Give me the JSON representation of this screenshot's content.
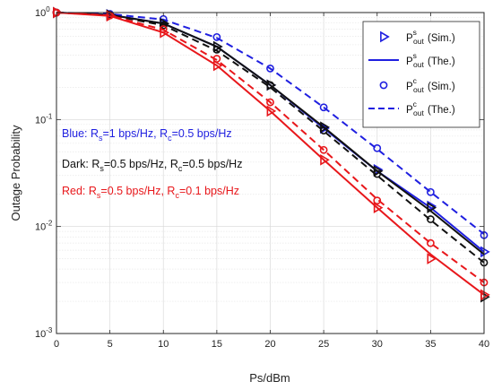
{
  "chart_data": {
    "type": "line",
    "xlabel": "Ps/dBm",
    "ylabel": "Outage Probability",
    "xlim": [
      0,
      40
    ],
    "ylim": [
      0.001,
      1
    ],
    "yscale": "log",
    "grid": true,
    "x_ticks": [
      0,
      5,
      10,
      15,
      20,
      25,
      30,
      35,
      40
    ],
    "y_ticks": [
      {
        "value": 0.001,
        "base": "10",
        "exp": "-3"
      },
      {
        "value": 0.01,
        "base": "10",
        "exp": "-2"
      },
      {
        "value": 0.1,
        "base": "10",
        "exp": "-1"
      },
      {
        "value": 1,
        "base": "10",
        "exp": "0"
      }
    ],
    "legend_position": "top-right",
    "legend": [
      {
        "kind": "triangle",
        "style": "marker",
        "main": "P",
        "sup": "s",
        "sub": "out",
        "tail": "(Sim.)"
      },
      {
        "kind": "line-solid",
        "style": "solid",
        "main": "P",
        "sup": "s",
        "sub": "out",
        "tail": "(The.)"
      },
      {
        "kind": "circle",
        "style": "marker",
        "main": "P",
        "sup": "c",
        "sub": "out",
        "tail": "(Sim.)"
      },
      {
        "kind": "line-dashed",
        "style": "dashed",
        "main": "P",
        "sup": "c",
        "sub": "out",
        "tail": "(The.)"
      }
    ],
    "annotations": [
      {
        "color": "#1f1fe0",
        "parts": [
          [
            "Blue: R",
            ""
          ],
          [
            "s",
            "sub"
          ],
          [
            "=1 bps/Hz, R",
            ""
          ],
          [
            "c",
            "sub"
          ],
          [
            "=0.5 bps/Hz",
            ""
          ]
        ]
      },
      {
        "color": "#111111",
        "parts": [
          [
            "Dark: R",
            ""
          ],
          [
            "s",
            "sub"
          ],
          [
            "=0.5 bps/Hz, R",
            ""
          ],
          [
            "c",
            "sub"
          ],
          [
            "=0.5 bps/Hz",
            ""
          ]
        ]
      },
      {
        "color": "#e8171b",
        "parts": [
          [
            "Red: R",
            ""
          ],
          [
            "s",
            "sub"
          ],
          [
            "=0.5 bps/Hz, R",
            ""
          ],
          [
            "c",
            "sub"
          ],
          [
            "=0.1 bps/Hz",
            ""
          ]
        ]
      }
    ],
    "x": [
      0,
      5,
      10,
      15,
      20,
      25,
      30,
      35,
      40
    ],
    "series": [
      {
        "group": "blue",
        "color": "#1f1fe0",
        "kind": "line-solid",
        "values": [
          1,
          0.955,
          0.79,
          0.48,
          0.21,
          0.083,
          0.033,
          0.015,
          0.0058
        ]
      },
      {
        "group": "blue",
        "color": "#1f1fe0",
        "kind": "triangle",
        "values": [
          1,
          0.955,
          0.79,
          0.48,
          0.21,
          0.083,
          0.034,
          0.0155,
          0.0058
        ]
      },
      {
        "group": "blue",
        "color": "#1f1fe0",
        "kind": "line-dashed",
        "values": [
          1,
          0.97,
          0.86,
          0.58,
          0.3,
          0.13,
          0.053,
          0.021,
          0.0085
        ]
      },
      {
        "group": "blue",
        "color": "#1f1fe0",
        "kind": "circle",
        "values": [
          1,
          0.97,
          0.87,
          0.59,
          0.3,
          0.13,
          0.054,
          0.021,
          0.0083
        ]
      },
      {
        "group": "dark",
        "color": "#111111",
        "kind": "line-solid",
        "values": [
          1,
          0.95,
          0.79,
          0.48,
          0.21,
          0.085,
          0.033,
          0.014,
          0.0055
        ]
      },
      {
        "group": "dark",
        "color": "#111111",
        "kind": "triangle",
        "values": [
          1,
          0.95,
          0.79,
          0.48,
          0.21,
          0.085,
          0.033,
          0.015,
          0.0022
        ]
      },
      {
        "group": "dark",
        "color": "#111111",
        "kind": "line-dashed",
        "values": [
          1,
          0.945,
          0.76,
          0.44,
          0.2,
          0.078,
          0.03,
          0.0115,
          0.0046
        ]
      },
      {
        "group": "dark",
        "color": "#111111",
        "kind": "circle",
        "values": [
          1,
          0.95,
          0.76,
          0.45,
          0.21,
          0.079,
          0.031,
          0.0117,
          0.0046
        ]
      },
      {
        "group": "red",
        "color": "#e8171b",
        "kind": "line-solid",
        "values": [
          1,
          0.93,
          0.65,
          0.32,
          0.12,
          0.042,
          0.015,
          0.0055,
          0.0023
        ]
      },
      {
        "group": "red",
        "color": "#e8171b",
        "kind": "triangle",
        "values": [
          1,
          0.93,
          0.65,
          0.32,
          0.12,
          0.042,
          0.015,
          0.005,
          0.0023
        ]
      },
      {
        "group": "red",
        "color": "#e8171b",
        "kind": "line-dashed",
        "values": [
          1,
          0.94,
          0.69,
          0.36,
          0.145,
          0.052,
          0.018,
          0.007,
          0.003
        ]
      },
      {
        "group": "red",
        "color": "#e8171b",
        "kind": "circle",
        "values": [
          1,
          0.94,
          0.7,
          0.37,
          0.145,
          0.052,
          0.0175,
          0.007,
          0.003
        ]
      }
    ]
  }
}
